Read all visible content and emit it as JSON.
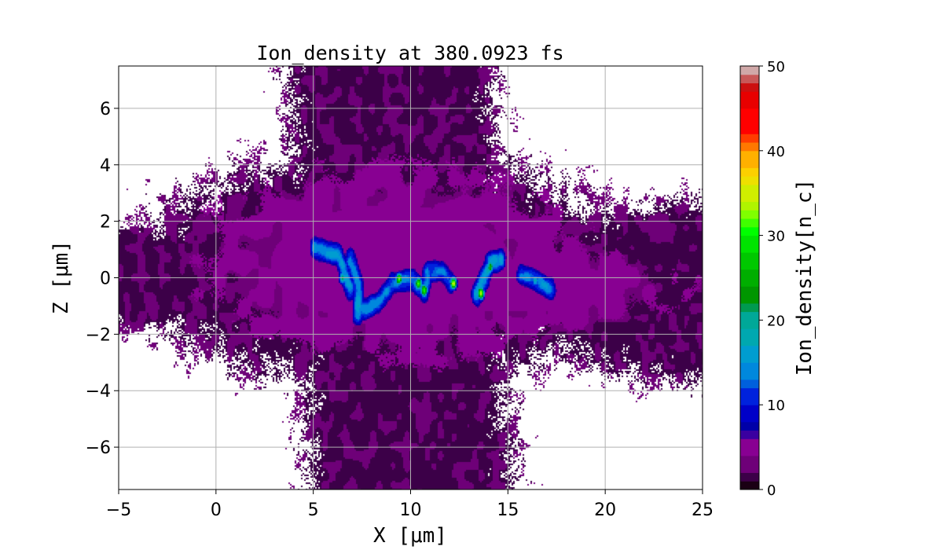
{
  "chart_data": {
    "type": "heatmap",
    "title": "Ion_density at 380.0923 fs",
    "xlabel": "X [μm]",
    "ylabel": "Z [μm]",
    "xlim": [
      -5,
      25
    ],
    "ylim": [
      -7.5,
      7.5
    ],
    "xticks": [
      "−5",
      "0",
      "5",
      "10",
      "15",
      "20",
      "25"
    ],
    "xtick_values": [
      -5,
      0,
      5,
      10,
      15,
      20,
      25
    ],
    "yticks": [
      "−6",
      "−4",
      "−2",
      "0",
      "2",
      "4",
      "6"
    ],
    "ytick_values": [
      -6,
      -4,
      -2,
      0,
      2,
      4,
      6
    ],
    "grid": true,
    "colorbar": {
      "label": "Ion_density[n_c]",
      "range": [
        0,
        50
      ],
      "ticks": [
        "0",
        "10",
        "20",
        "30",
        "40",
        "50"
      ],
      "tick_values": [
        0,
        10,
        20,
        30,
        40,
        50
      ],
      "colormap": "nipy_spectral (discrete levels)",
      "levels": [
        {
          "from": 0,
          "to": 1,
          "color": "#1a0014"
        },
        {
          "from": 1,
          "to": 2,
          "color": "#3c0048"
        },
        {
          "from": 2,
          "to": 4,
          "color": "#6e0078"
        },
        {
          "from": 4,
          "to": 6,
          "color": "#880092"
        },
        {
          "from": 6,
          "to": 7,
          "color": "#3a00a0"
        },
        {
          "from": 7,
          "to": 8,
          "color": "#0000a8"
        },
        {
          "from": 8,
          "to": 10,
          "color": "#0000c8"
        },
        {
          "from": 10,
          "to": 12,
          "color": "#0022dd"
        },
        {
          "from": 12,
          "to": 13,
          "color": "#0060dd"
        },
        {
          "from": 13,
          "to": 15,
          "color": "#0088dd"
        },
        {
          "from": 15,
          "to": 17,
          "color": "#009dd0"
        },
        {
          "from": 17,
          "to": 19,
          "color": "#00a8b0"
        },
        {
          "from": 19,
          "to": 21,
          "color": "#00a898"
        },
        {
          "from": 21,
          "to": 22,
          "color": "#009a50"
        },
        {
          "from": 22,
          "to": 24,
          "color": "#009600"
        },
        {
          "from": 24,
          "to": 26,
          "color": "#00ae00"
        },
        {
          "from": 26,
          "to": 28,
          "color": "#00c800"
        },
        {
          "from": 28,
          "to": 30,
          "color": "#00e400"
        },
        {
          "from": 30,
          "to": 31,
          "color": "#00ff00"
        },
        {
          "from": 31,
          "to": 32,
          "color": "#40ff00"
        },
        {
          "from": 32,
          "to": 33,
          "color": "#80ff00"
        },
        {
          "from": 33,
          "to": 34,
          "color": "#b0f400"
        },
        {
          "from": 34,
          "to": 36,
          "color": "#d0ee00"
        },
        {
          "from": 36,
          "to": 37,
          "color": "#eee000"
        },
        {
          "from": 37,
          "to": 38,
          "color": "#fcd000"
        },
        {
          "from": 38,
          "to": 40,
          "color": "#ffb000"
        },
        {
          "from": 40,
          "to": 41,
          "color": "#ff7800"
        },
        {
          "from": 41,
          "to": 42,
          "color": "#ff3c00"
        },
        {
          "from": 42,
          "to": 45,
          "color": "#ff0000"
        },
        {
          "from": 45,
          "to": 47,
          "color": "#e80000"
        },
        {
          "from": 47,
          "to": 48,
          "color": "#cc1010"
        },
        {
          "from": 48,
          "to": 49,
          "color": "#c85858"
        },
        {
          "from": 49,
          "to": 50,
          "color": "#d0a8a8"
        }
      ]
    },
    "features": {
      "low_density_regions": [
        {
          "shape": "ellipse",
          "center": [
            8.5,
            0.3
          ],
          "semi_axes": [
            12.5,
            4.2
          ],
          "value": 1
        },
        {
          "shape": "vertical_band",
          "center_x": 9.5,
          "half_width": 5.3,
          "value": 1
        },
        {
          "shape": "ellipse",
          "center": [
            25,
            -0.5
          ],
          "semi_axes": [
            10,
            3.2
          ],
          "value": 1
        },
        {
          "shape": "ellipse",
          "center": [
            -4,
            0
          ],
          "semi_axes": [
            6,
            1.8
          ],
          "value": 1
        }
      ],
      "medium_density_regions": [
        {
          "shape": "ellipse",
          "center": [
            9,
            0.5
          ],
          "semi_axes": [
            9.5,
            3.2
          ],
          "value": 4.5
        },
        {
          "shape": "ellipse",
          "center": [
            15.5,
            -0.3
          ],
          "semi_axes": [
            8,
            1.4
          ],
          "value": 4
        }
      ],
      "filaments": [
        {
          "points": [
            [
              5.1,
              1.05
            ],
            [
              6.3,
              0.8
            ],
            [
              6.7,
              0.0
            ],
            [
              6.9,
              -0.4
            ]
          ],
          "value": 15
        },
        {
          "points": [
            [
              6.9,
              0.64
            ],
            [
              7.3,
              -0.2
            ],
            [
              7.3,
              -1.3
            ]
          ],
          "value": 15
        },
        {
          "points": [
            [
              7.3,
              -1.2
            ],
            [
              8.3,
              -0.9
            ],
            [
              9.1,
              -0.2
            ],
            [
              10.1,
              -0.05
            ],
            [
              10.7,
              -0.5
            ],
            [
              10.9,
              0.2
            ]
          ],
          "value": 14
        },
        {
          "points": [
            [
              10.9,
              0.2
            ],
            [
              11.6,
              0.25
            ],
            [
              12.1,
              -0.2
            ]
          ],
          "value": 13
        },
        {
          "points": [
            [
              13.4,
              -0.6
            ],
            [
              13.8,
              0.0
            ],
            [
              14.1,
              0.5
            ],
            [
              14.6,
              0.65
            ]
          ],
          "value": 16
        },
        {
          "points": [
            [
              15.7,
              0.1
            ],
            [
              16.5,
              -0.1
            ],
            [
              17.2,
              -0.4
            ]
          ],
          "value": 14
        }
      ],
      "peaks": [
        {
          "x": 9.4,
          "z": -0.05,
          "value": 32
        },
        {
          "x": 10.7,
          "z": -0.45,
          "value": 34
        },
        {
          "x": 10.4,
          "z": -0.2,
          "value": 30
        },
        {
          "x": 12.2,
          "z": -0.2,
          "value": 35
        },
        {
          "x": 13.6,
          "z": -0.55,
          "value": 35
        },
        {
          "x": 14.1,
          "z": 0.4,
          "value": 26
        },
        {
          "x": 6.5,
          "z": 0.0,
          "value": 22
        },
        {
          "x": 16.4,
          "z": -0.1,
          "value": 20
        }
      ]
    }
  }
}
